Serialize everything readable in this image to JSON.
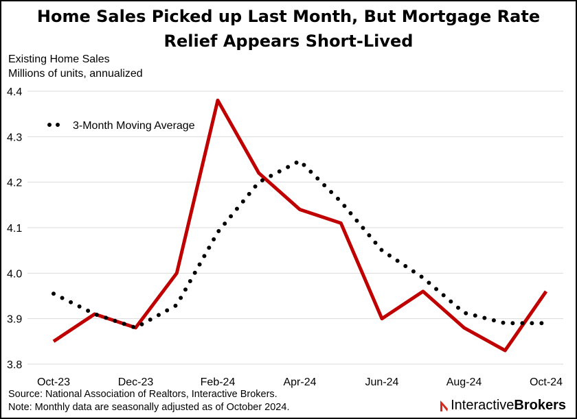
{
  "chart_data": {
    "type": "line",
    "title_line1": "Home Sales Picked up Last Month, But Mortgage Rate",
    "title_line2": "Relief Appears Short-Lived",
    "ylabel_line1": "Existing Home Sales",
    "ylabel_line2": "Millions of units, annualized",
    "x": [
      "Oct-23",
      "Nov-23",
      "Dec-23",
      "Jan-24",
      "Feb-24",
      "Mar-24",
      "Apr-24",
      "May-24",
      "Jun-24",
      "Jul-24",
      "Aug-24",
      "Sep-24",
      "Oct-24"
    ],
    "x_tick_labels": [
      "Oct-23",
      "Dec-23",
      "Feb-24",
      "Apr-24",
      "Jun-24",
      "Aug-24",
      "Oct-24"
    ],
    "ylim": [
      3.8,
      4.4
    ],
    "y_ticks": [
      "3.8",
      "3.9",
      "4.0",
      "4.1",
      "4.2",
      "4.3",
      "4.4"
    ],
    "grid": true,
    "series": [
      {
        "name": "",
        "color": "#c00000",
        "style": "solid",
        "values": [
          3.85,
          3.91,
          3.88,
          4.0,
          4.38,
          4.22,
          4.14,
          4.11,
          3.9,
          3.96,
          3.88,
          3.83,
          3.96
        ]
      },
      {
        "name": "3-Month Moving Average",
        "color": "#000000",
        "style": "dotted",
        "values": [
          3.955,
          3.91,
          3.88,
          3.93,
          4.09,
          4.2,
          4.247,
          4.157,
          4.05,
          3.99,
          3.913,
          3.89,
          3.89
        ]
      }
    ],
    "legend_position": "top-left"
  },
  "footer": {
    "source": "Source: National Association of Realtors, Interactive Brokers.",
    "note": "Note: Monthly data are seasonally adjusted as of October 2024."
  },
  "logo": {
    "part1": "Interactive",
    "part2": "Brokers",
    "mark_color": "#d52b1e"
  }
}
